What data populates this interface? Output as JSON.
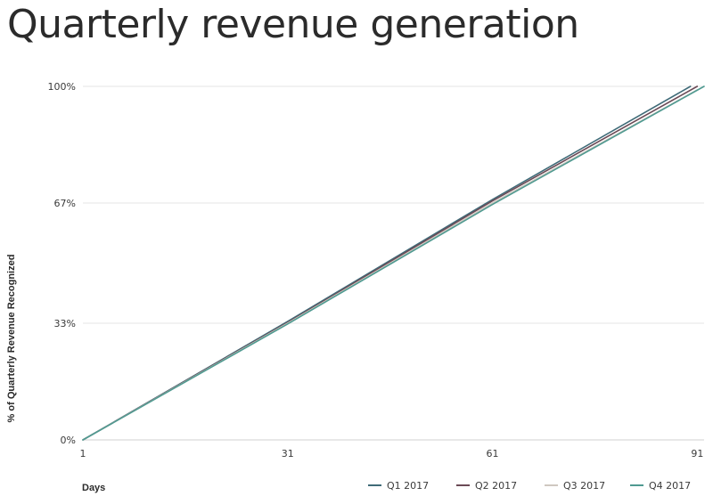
{
  "chart_data": {
    "type": "line",
    "title": "Quarterly revenue generation",
    "xlabel": "Days",
    "ylabel": "% of Quarterly Revenue Recognized",
    "xlim": [
      1,
      92
    ],
    "ylim": [
      0,
      100
    ],
    "x_ticks": [
      1,
      31,
      61,
      91
    ],
    "x_tick_labels": [
      "1",
      "31",
      "61",
      "91"
    ],
    "y_ticks": [
      0,
      33,
      67,
      100
    ],
    "y_tick_labels": [
      "0%",
      "33%",
      "67%",
      "100%"
    ],
    "grid": "horizontal",
    "legend_position": "bottom-right",
    "series": [
      {
        "name": "Q1 2017",
        "color": "#3f6b78",
        "x": [
          1,
          31,
          61,
          90
        ],
        "y": [
          0,
          33.5,
          68,
          100
        ]
      },
      {
        "name": "Q2 2017",
        "color": "#6b4a56",
        "x": [
          1,
          31,
          61,
          91
        ],
        "y": [
          0,
          33.2,
          67.6,
          100
        ]
      },
      {
        "name": "Q3 2017",
        "color": "#cfc8c0",
        "x": [
          1,
          31,
          61,
          91
        ],
        "y": [
          0,
          33,
          67,
          99
        ]
      },
      {
        "name": "Q4 2017",
        "color": "#4f9a91",
        "x": [
          1,
          31,
          61,
          92
        ],
        "y": [
          0,
          32.8,
          66.6,
          100
        ]
      }
    ]
  }
}
